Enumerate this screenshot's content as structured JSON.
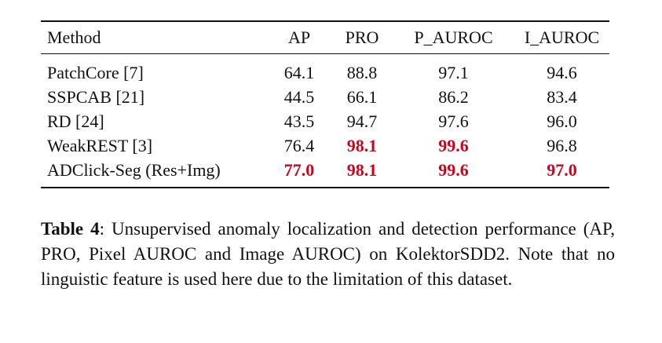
{
  "table": {
    "header": [
      "Method",
      "AP",
      "PRO",
      "P_AUROC",
      "I_AUROC"
    ],
    "rows": [
      [
        "PatchCore [7]",
        "64.1",
        "88.8",
        "97.1",
        "94.6"
      ],
      [
        "SSPCAB [21]",
        "44.5",
        "66.1",
        "86.2",
        "83.4"
      ],
      [
        "RD [24]",
        "43.5",
        "94.7",
        "97.6",
        "96.0"
      ],
      [
        "WeakREST [3]",
        "76.4",
        "98.1",
        "99.6",
        "96.8"
      ],
      [
        "ADClick-Seg (Res+Img)",
        "77.0",
        "98.1",
        "99.6",
        "97.0"
      ]
    ]
  },
  "caption": {
    "label": "Table 4",
    "text": ": Unsupervised anomaly localization and detection performance (AP, PRO, Pixel AUROC and Image AUROC) on KolektorSDD2. Note that no linguistic feature is used here due to the limitation of this dataset."
  }
}
